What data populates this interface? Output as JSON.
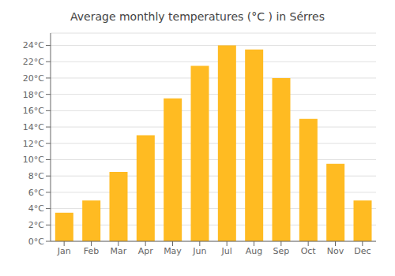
{
  "chart_data": {
    "type": "bar",
    "title": "Average monthly temperatures (°C ) in Sérres",
    "categories": [
      "Jan",
      "Feb",
      "Mar",
      "Apr",
      "May",
      "Jun",
      "Jul",
      "Aug",
      "Sep",
      "Oct",
      "Nov",
      "Dec"
    ],
    "values": [
      3.5,
      5.0,
      8.5,
      13.0,
      17.5,
      21.5,
      24.0,
      23.5,
      20.0,
      15.0,
      9.5,
      5.0
    ],
    "color": "#FFBB22",
    "ylim": [
      0,
      25.5
    ],
    "yticks": [
      {
        "value": 0,
        "label": "0°C"
      },
      {
        "value": 2,
        "label": "2°C"
      },
      {
        "value": 4,
        "label": "4°C"
      },
      {
        "value": 6,
        "label": "6°C"
      },
      {
        "value": 8,
        "label": "8°C"
      },
      {
        "value": 10,
        "label": "10°C"
      },
      {
        "value": 12,
        "label": "12°C"
      },
      {
        "value": 14,
        "label": "14°C"
      },
      {
        "value": 16,
        "label": "16°C"
      },
      {
        "value": 18,
        "label": "18°C"
      },
      {
        "value": 20,
        "label": "20°C"
      },
      {
        "value": 22,
        "label": "22°C"
      },
      {
        "value": 24,
        "label": "24°C"
      }
    ],
    "grid": true
  }
}
